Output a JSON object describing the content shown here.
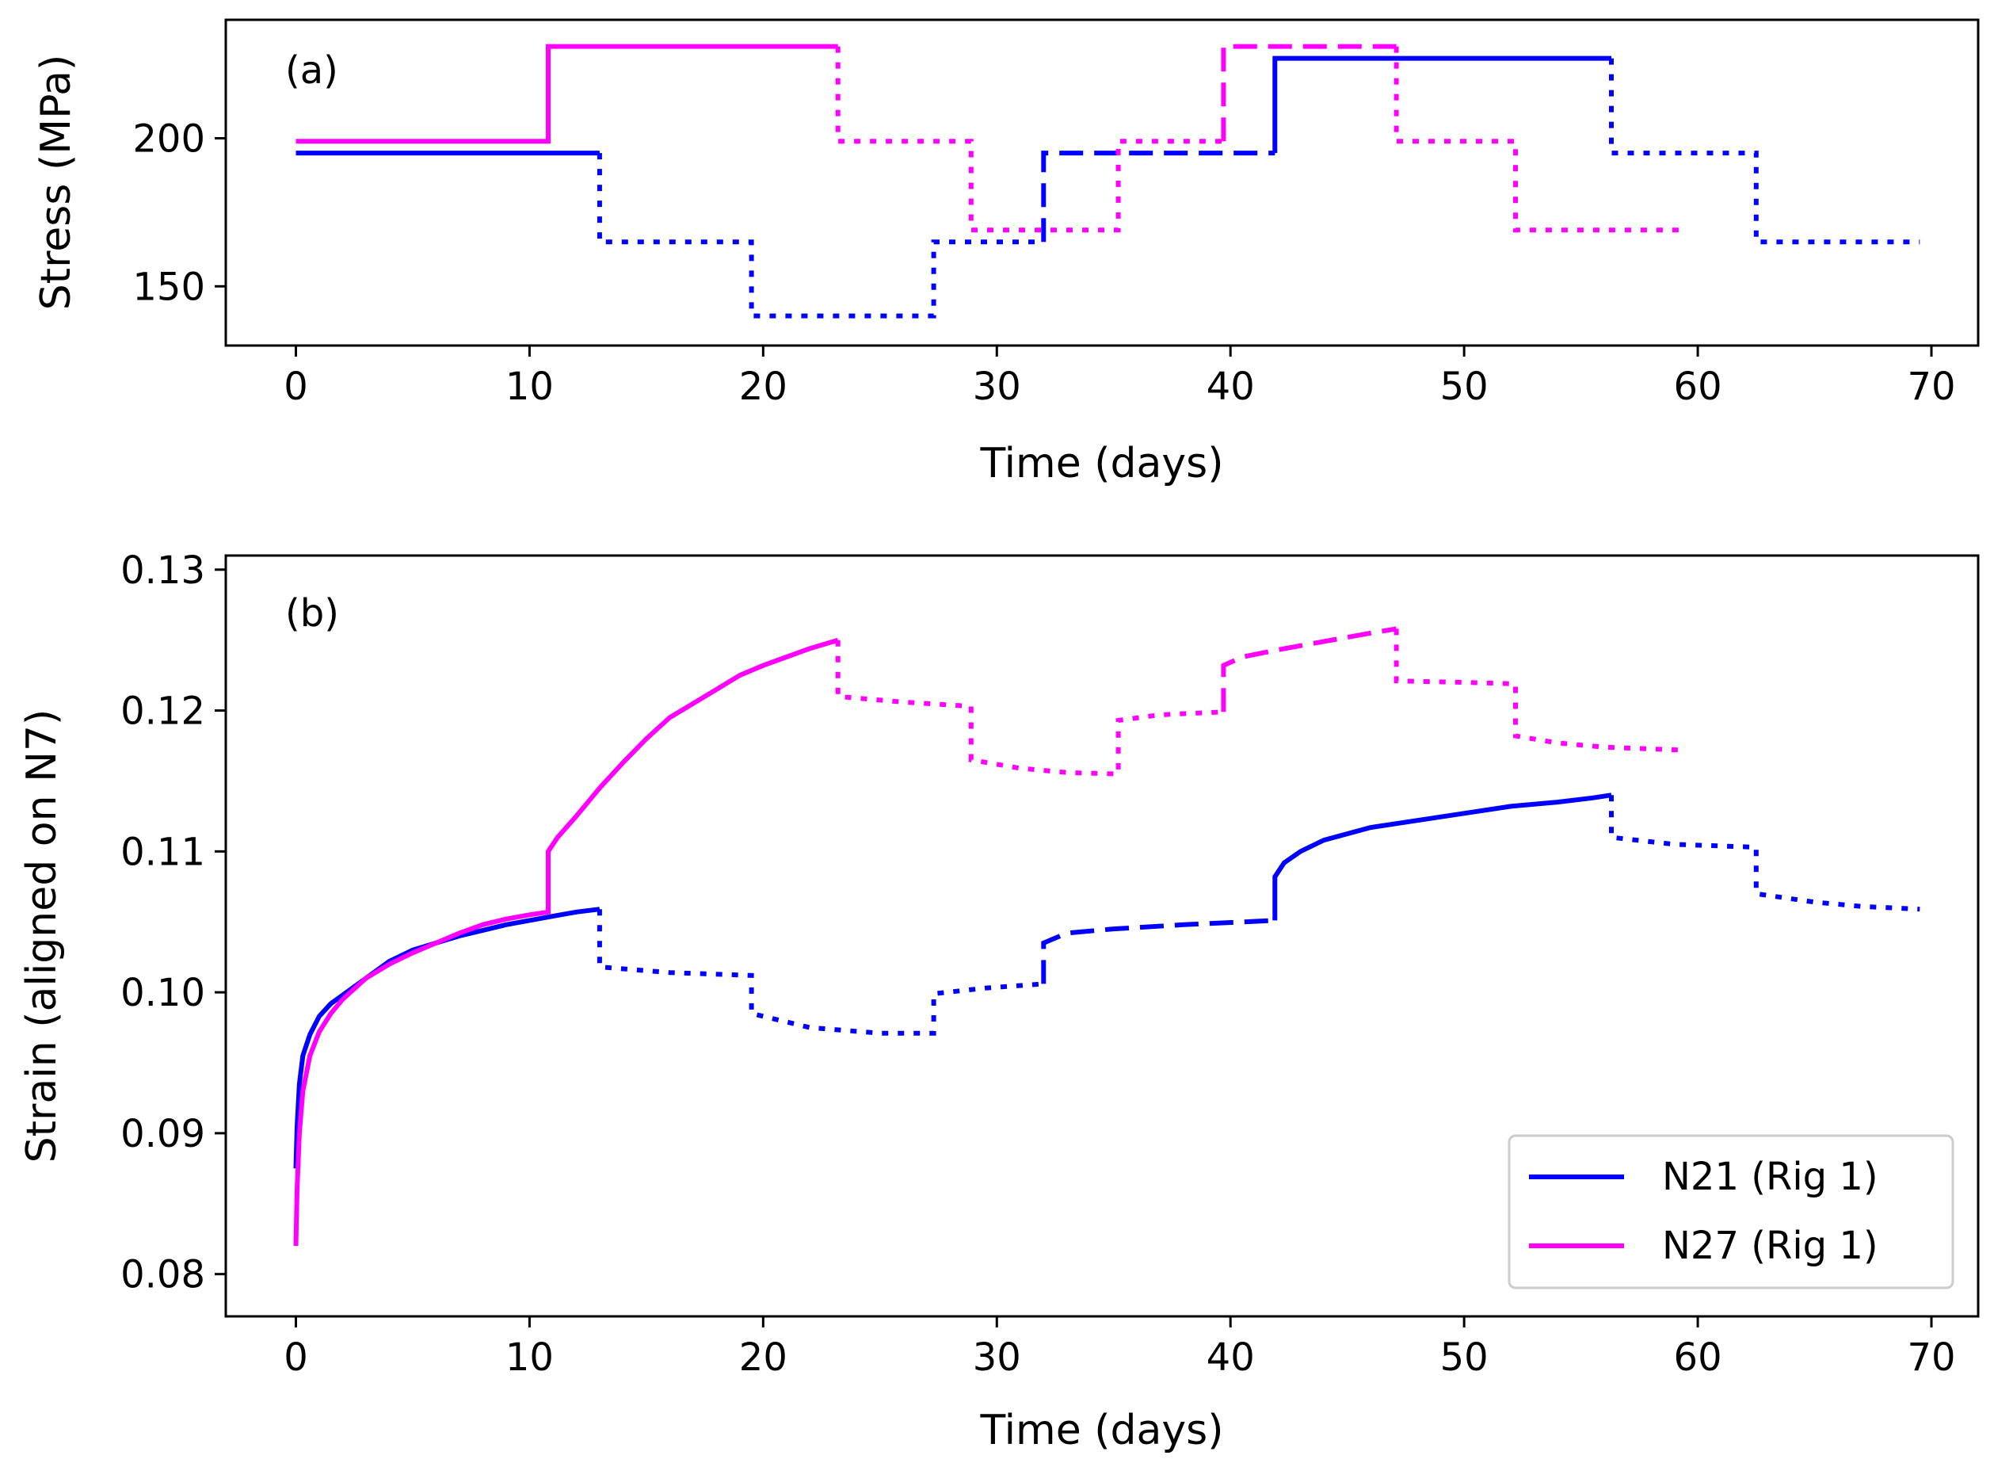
{
  "chart_data": [
    {
      "type": "line",
      "panel_label": "(a)",
      "xlabel": "Time (days)",
      "ylabel": "Stress (MPa)",
      "xlim": [
        -3,
        72
      ],
      "ylim": [
        130,
        240
      ],
      "xticks": [
        "0",
        "10",
        "20",
        "30",
        "40",
        "50",
        "60",
        "70"
      ],
      "yticks": [
        "150",
        "200"
      ],
      "grid": false,
      "colors": {
        "N21": "#0000ff",
        "N27": "#ff00ff"
      },
      "series": [
        {
          "name": "N21 (Rig 1)",
          "color": "#0000ff",
          "segments": [
            {
              "style": "solid",
              "x": [
                0,
                13
              ],
              "y": [
                195,
                195
              ]
            },
            {
              "style": "dotted",
              "x": [
                13,
                13,
                19.5,
                19.5,
                27.3,
                27.3,
                32
              ],
              "y": [
                195,
                165,
                165,
                140,
                140,
                165,
                165
              ]
            },
            {
              "style": "dashed",
              "x": [
                32,
                32,
                41.9
              ],
              "y": [
                165,
                195,
                195
              ]
            },
            {
              "style": "solid",
              "x": [
                41.9,
                41.9,
                56.3
              ],
              "y": [
                195,
                227,
                227
              ]
            },
            {
              "style": "dotted",
              "x": [
                56.3,
                56.3,
                62.5,
                62.5,
                69.5
              ],
              "y": [
                227,
                195,
                195,
                165,
                165
              ]
            }
          ]
        },
        {
          "name": "N27 (Rig 1)",
          "color": "#ff00ff",
          "segments": [
            {
              "style": "solid",
              "x": [
                0,
                10.8,
                10.8,
                23.2
              ],
              "y": [
                199,
                199,
                231,
                231
              ]
            },
            {
              "style": "dotted",
              "x": [
                23.2,
                23.2,
                28.9,
                28.9,
                35.2,
                35.2,
                39.7
              ],
              "y": [
                231,
                199,
                199,
                169,
                169,
                199,
                199
              ]
            },
            {
              "style": "dashed",
              "x": [
                39.7,
                39.7,
                47.1
              ],
              "y": [
                199,
                231,
                231
              ]
            },
            {
              "style": "dotted",
              "x": [
                47.1,
                47.1,
                52.2,
                52.2,
                59.2
              ],
              "y": [
                231,
                199,
                199,
                169,
                169
              ]
            }
          ]
        }
      ]
    },
    {
      "type": "line",
      "panel_label": "(b)",
      "xlabel": "Time (days)",
      "ylabel": "Strain (aligned on N7)",
      "xlim": [
        -3,
        72
      ],
      "ylim": [
        0.077,
        0.131
      ],
      "xticks": [
        "0",
        "10",
        "20",
        "30",
        "40",
        "50",
        "60",
        "70"
      ],
      "yticks": [
        "0.08",
        "0.09",
        "0.10",
        "0.11",
        "0.12",
        "0.13"
      ],
      "grid": false,
      "legend": {
        "position": "bottom-right",
        "entries": [
          "N21 (Rig 1)",
          "N27 (Rig 1)"
        ]
      },
      "series": [
        {
          "name": "N21 (Rig 1)",
          "color": "#0000ff",
          "segments": [
            {
              "style": "solid",
              "x": [
                0,
                0.05,
                0.15,
                0.3,
                0.6,
                1.0,
                1.5,
                2,
                3,
                4,
                5,
                6,
                7,
                8,
                9,
                10,
                11,
                12,
                13
              ],
              "y": [
                0.0875,
                0.0905,
                0.0935,
                0.0955,
                0.097,
                0.0983,
                0.0992,
                0.0998,
                0.101,
                0.1022,
                0.103,
                0.1035,
                0.104,
                0.1044,
                0.1048,
                0.1051,
                0.1054,
                0.1057,
                0.1059
              ]
            },
            {
              "style": "dotted",
              "x": [
                13,
                13,
                16,
                19.5,
                19.5,
                22,
                25,
                27.3,
                27.3,
                29.5,
                32
              ],
              "y": [
                0.1059,
                0.1018,
                0.1014,
                0.1012,
                0.0985,
                0.0975,
                0.0971,
                0.0971,
                0.0999,
                0.1003,
                0.1006
              ]
            },
            {
              "style": "dashed",
              "x": [
                32,
                32,
                33,
                35,
                38,
                41.9
              ],
              "y": [
                0.1006,
                0.1035,
                0.1042,
                0.1045,
                0.1048,
                0.1051
              ]
            },
            {
              "style": "solid",
              "x": [
                41.9,
                41.9,
                42.3,
                43,
                44,
                46,
                48,
                50,
                52,
                54,
                55.5,
                56.3
              ],
              "y": [
                0.1051,
                0.1082,
                0.1092,
                0.11,
                0.1108,
                0.1117,
                0.1122,
                0.1127,
                0.1132,
                0.1135,
                0.1138,
                0.114
              ]
            },
            {
              "style": "dotted",
              "x": [
                56.3,
                56.3,
                59,
                62.5,
                62.5,
                65,
                67,
                69.5
              ],
              "y": [
                0.114,
                0.111,
                0.1105,
                0.1103,
                0.107,
                0.1064,
                0.1061,
                0.1059
              ]
            }
          ]
        },
        {
          "name": "N27 (Rig 1)",
          "color": "#ff00ff",
          "segments": [
            {
              "style": "solid",
              "x": [
                0,
                0.05,
                0.15,
                0.3,
                0.6,
                1.0,
                1.5,
                2,
                3,
                4,
                5,
                6,
                7,
                8,
                9,
                10,
                10.8,
                10.8,
                11.2,
                12,
                13,
                14,
                15,
                16,
                17,
                18,
                19,
                20,
                21,
                22,
                23.2
              ],
              "y": [
                0.082,
                0.086,
                0.09,
                0.093,
                0.0955,
                0.0972,
                0.0985,
                0.0995,
                0.101,
                0.102,
                0.1028,
                0.1035,
                0.1042,
                0.1048,
                0.1052,
                0.1055,
                0.1057,
                0.11,
                0.111,
                0.1125,
                0.1145,
                0.1163,
                0.118,
                0.1195,
                0.1205,
                0.1215,
                0.1225,
                0.1232,
                0.1238,
                0.1244,
                0.125
              ]
            },
            {
              "style": "dotted",
              "x": [
                23.2,
                23.2,
                26,
                28.9,
                28.9,
                31,
                33,
                35.2,
                35.2,
                37,
                39.7
              ],
              "y": [
                0.125,
                0.121,
                0.1206,
                0.1203,
                0.1165,
                0.1159,
                0.1156,
                0.1155,
                0.1193,
                0.1197,
                0.1199
              ]
            },
            {
              "style": "dashed",
              "x": [
                39.7,
                39.7,
                40.5,
                42,
                44,
                46,
                47.1
              ],
              "y": [
                0.1199,
                0.1232,
                0.1238,
                0.1243,
                0.1249,
                0.1255,
                0.1258
              ]
            },
            {
              "style": "dotted",
              "x": [
                47.1,
                47.1,
                50,
                52.2,
                52.2,
                54,
                56,
                59.2
              ],
              "y": [
                0.1258,
                0.1221,
                0.122,
                0.1219,
                0.1182,
                0.1177,
                0.1174,
                0.1172
              ]
            }
          ]
        }
      ]
    }
  ]
}
